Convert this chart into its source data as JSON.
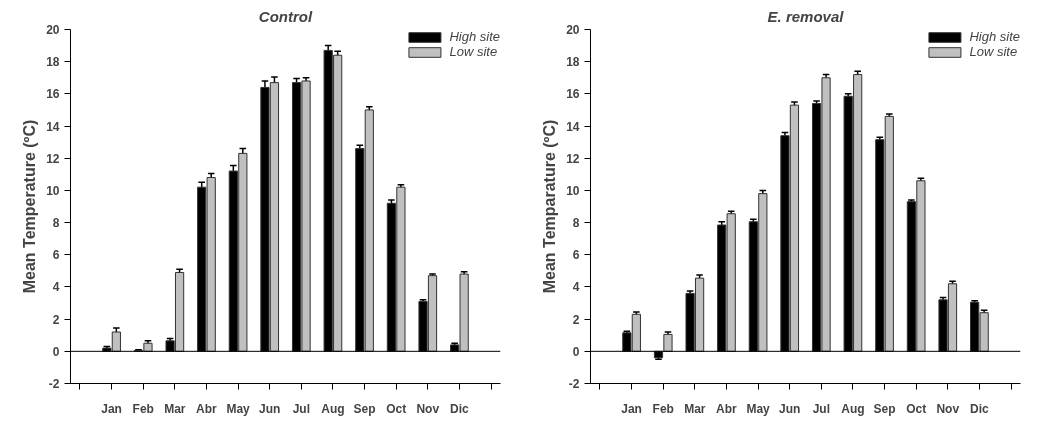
{
  "chart_data": [
    {
      "type": "bar",
      "title": "Control",
      "ylabel": "Mean Temperature (ºC)",
      "categories": [
        "Jan",
        "Feb",
        "Mar",
        "Abr",
        "May",
        "Jun",
        "Jul",
        "Aug",
        "Sep",
        "Oct",
        "Nov",
        "Dic"
      ],
      "series": [
        {
          "name": "High site",
          "color": "#000000",
          "values": [
            0.2,
            0.05,
            0.65,
            10.2,
            11.2,
            16.4,
            16.7,
            18.7,
            12.6,
            9.2,
            3.1,
            0.4
          ],
          "errors": [
            0.1,
            0.05,
            0.15,
            0.3,
            0.35,
            0.4,
            0.25,
            0.3,
            0.2,
            0.2,
            0.1,
            0.1
          ]
        },
        {
          "name": "Low site",
          "color": "#c0c0c0",
          "values": [
            1.2,
            0.5,
            4.9,
            10.8,
            12.3,
            16.7,
            16.8,
            18.4,
            15.0,
            10.2,
            4.7,
            4.8
          ],
          "errors": [
            0.25,
            0.15,
            0.2,
            0.25,
            0.3,
            0.35,
            0.2,
            0.25,
            0.2,
            0.15,
            0.1,
            0.15
          ]
        }
      ],
      "ylim": [
        -2,
        20
      ],
      "yticks": [
        -2,
        0,
        2,
        4,
        6,
        8,
        10,
        12,
        14,
        16,
        18,
        20
      ],
      "ref_lines": [
        {
          "axis": "y",
          "value": 0,
          "label": null,
          "color": "#000000"
        }
      ],
      "grid": false,
      "legend": "top right"
    },
    {
      "type": "bar",
      "title": "E. removal",
      "ylabel": "Mean Temparature (ºC)",
      "categories": [
        "Jan",
        "Feb",
        "Mar",
        "Abr",
        "May",
        "Jun",
        "Jul",
        "Aug",
        "Sep",
        "Oct",
        "Nov",
        "Dic"
      ],
      "series": [
        {
          "name": "High site",
          "color": "#000000",
          "values": [
            1.15,
            -0.4,
            3.6,
            7.85,
            8.05,
            13.4,
            15.4,
            15.85,
            13.15,
            9.3,
            3.2,
            3.05
          ],
          "errors": [
            0.1,
            0.1,
            0.15,
            0.2,
            0.15,
            0.2,
            0.15,
            0.15,
            0.15,
            0.1,
            0.15,
            0.1
          ]
        },
        {
          "name": "Low site",
          "color": "#c0c0c0",
          "values": [
            2.3,
            1.05,
            4.55,
            8.55,
            9.8,
            15.3,
            17.0,
            17.2,
            14.6,
            10.6,
            4.2,
            2.4
          ],
          "errors": [
            0.15,
            0.15,
            0.2,
            0.15,
            0.2,
            0.2,
            0.2,
            0.2,
            0.15,
            0.15,
            0.15,
            0.15
          ]
        }
      ],
      "ylim": [
        -2,
        20
      ],
      "yticks": [
        -2,
        0,
        2,
        4,
        6,
        8,
        10,
        12,
        14,
        16,
        18,
        20
      ],
      "ref_lines": [
        {
          "axis": "y",
          "value": 0,
          "label": null,
          "color": "#000000"
        }
      ],
      "grid": false,
      "legend": "top right"
    }
  ]
}
